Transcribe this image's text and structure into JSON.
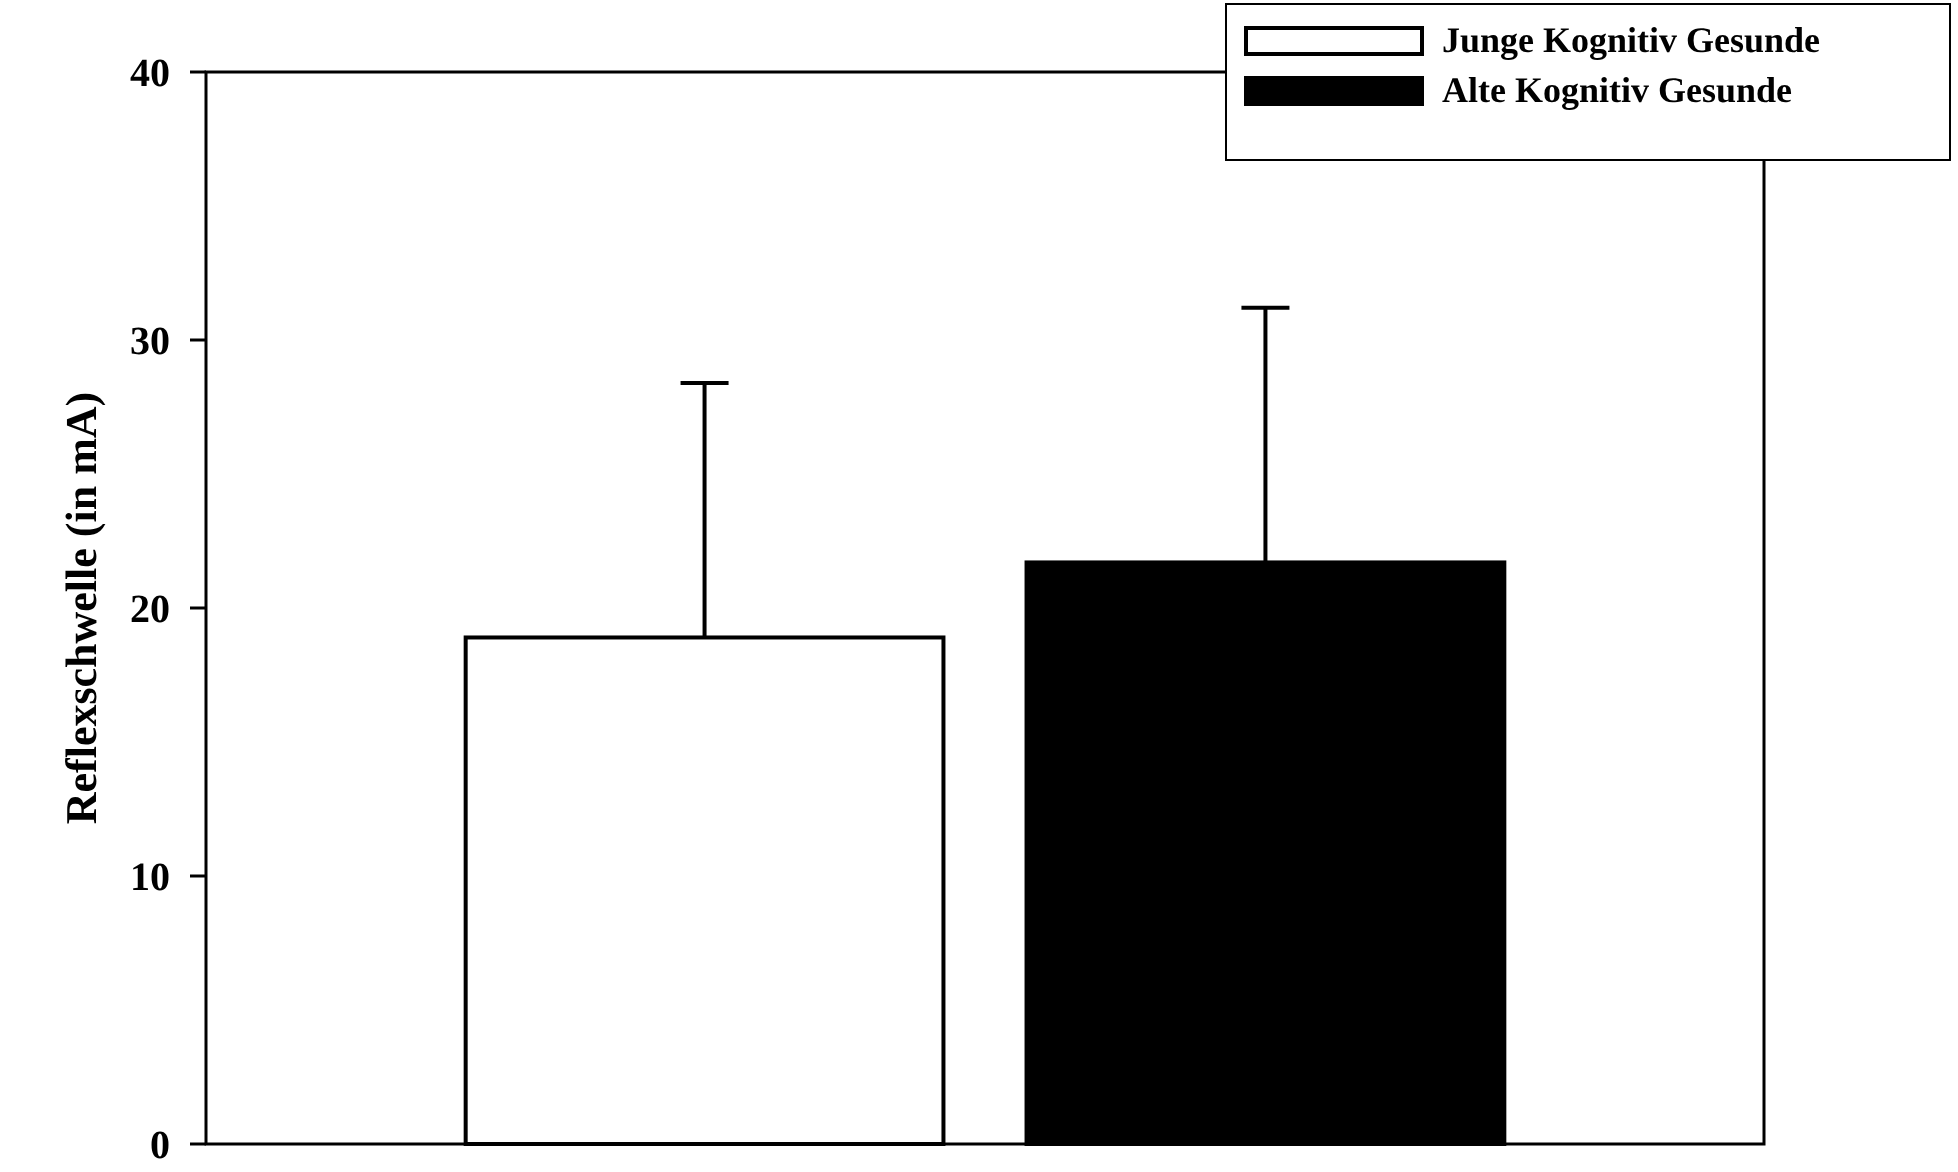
{
  "chart_data": {
    "type": "bar",
    "ylabel": "Reflexschwelle (in mA)",
    "categories": [
      null
    ],
    "series": [
      {
        "name": "Junge Kognitiv Gesunde",
        "color": "#ffffff",
        "values": [
          18.9
        ],
        "errors": [
          [
            18.9,
            28.4
          ]
        ]
      },
      {
        "name": "Alte Kognitiv Gesunde",
        "color": "#000000",
        "values": [
          21.7
        ],
        "errors": [
          [
            21.7,
            31.2
          ]
        ]
      }
    ],
    "ylim": [
      0,
      40
    ],
    "yticks": [
      0,
      10,
      20,
      30,
      40
    ],
    "grid": false,
    "legend": "top right"
  }
}
